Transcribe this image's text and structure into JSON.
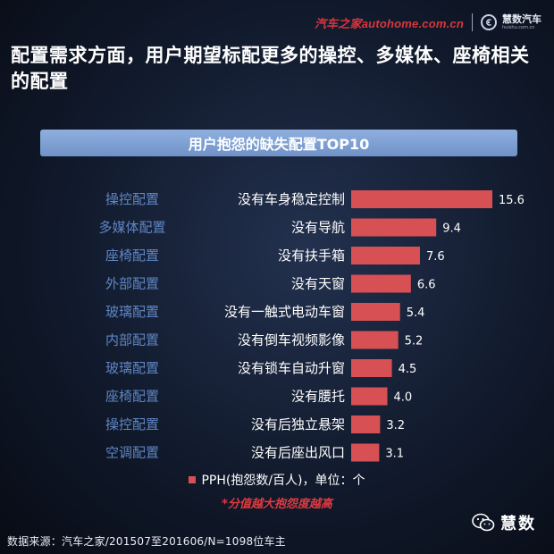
{
  "brand": {
    "autohome_text": "汽车之家autohome.com.cn",
    "partner_name": "慧数汽车",
    "partner_url": "huishu.com.cn"
  },
  "headline": "配置需求方面，用户期望标配更多的操控、多媒体、座椅相关的配置",
  "chart_data": {
    "type": "bar",
    "orientation": "horizontal",
    "title": "用户抱怨的缺失配置TOP10",
    "categories": [
      "没有车身稳定控制",
      "没有导航",
      "没有扶手箱",
      "没有天窗",
      "没有一触式电动车窗",
      "没有倒车视频影像",
      "没有锁车自动升窗",
      "没有腰托",
      "没有后独立悬架",
      "没有后座出风口"
    ],
    "groups": [
      "操控配置",
      "多媒体配置",
      "座椅配置",
      "外部配置",
      "玻璃配置",
      "内部配置",
      "玻璃配置",
      "座椅配置",
      "操控配置",
      "空调配置"
    ],
    "series": [
      {
        "name": "PPH(抱怨数/百人)，单位：个",
        "values": [
          15.6,
          9.4,
          7.6,
          6.6,
          5.4,
          5.2,
          4.5,
          4.0,
          3.2,
          3.1
        ]
      }
    ],
    "value_labels": [
      "15.6",
      "9.4",
      "7.6",
      "6.6",
      "5.4",
      "5.2",
      "4.5",
      "4.0",
      "3.2",
      "3.1"
    ],
    "xlim": [
      0,
      15.6
    ],
    "grid": false,
    "legend_position": "bottom",
    "bar_color": "#d65054"
  },
  "legend_label": "PPH(抱怨数/百人)，单位：个",
  "note": "*分值越大抱怨度越高",
  "source": "数据来源：汽车之家/201507至201606/N=1098位车主",
  "watermark": "慧数"
}
